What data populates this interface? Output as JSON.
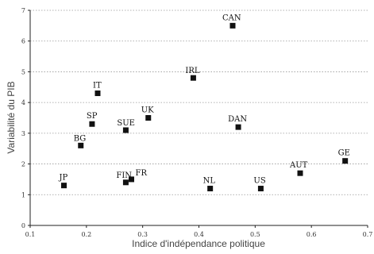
{
  "chart_data": {
    "type": "scatter",
    "title": "",
    "xlabel": "Indice d'indépendance politique",
    "ylabel": "Variabilité du PIB",
    "xlim": [
      0.1,
      0.7
    ],
    "ylim": [
      0,
      7
    ],
    "xticks": [
      "0.1",
      "0.2",
      "0.3",
      "0.4",
      "0.5",
      "0.6",
      "0.7"
    ],
    "yticks": [
      "0",
      "1",
      "2",
      "3",
      "4",
      "5",
      "6",
      "7"
    ],
    "grid": "horizontal-dotted",
    "legend": "none",
    "marker_color": "#111111",
    "points": [
      {
        "label": "CAN",
        "x": 0.46,
        "y": 6.5
      },
      {
        "label": "IRL",
        "x": 0.39,
        "y": 4.8
      },
      {
        "label": "IT",
        "x": 0.22,
        "y": 4.3
      },
      {
        "label": "UK",
        "x": 0.31,
        "y": 3.5
      },
      {
        "label": "SP",
        "x": 0.21,
        "y": 3.3
      },
      {
        "label": "SUE",
        "x": 0.27,
        "y": 3.1
      },
      {
        "label": "DAN",
        "x": 0.47,
        "y": 3.2
      },
      {
        "label": "BG",
        "x": 0.19,
        "y": 2.6
      },
      {
        "label": "GE",
        "x": 0.66,
        "y": 2.1
      },
      {
        "label": "AUT",
        "x": 0.58,
        "y": 1.7
      },
      {
        "label": "FR",
        "x": 0.28,
        "y": 1.5
      },
      {
        "label": "FIN",
        "x": 0.27,
        "y": 1.4
      },
      {
        "label": "JP",
        "x": 0.16,
        "y": 1.3
      },
      {
        "label": "NL",
        "x": 0.42,
        "y": 1.2
      },
      {
        "label": "US",
        "x": 0.51,
        "y": 1.2
      }
    ]
  }
}
